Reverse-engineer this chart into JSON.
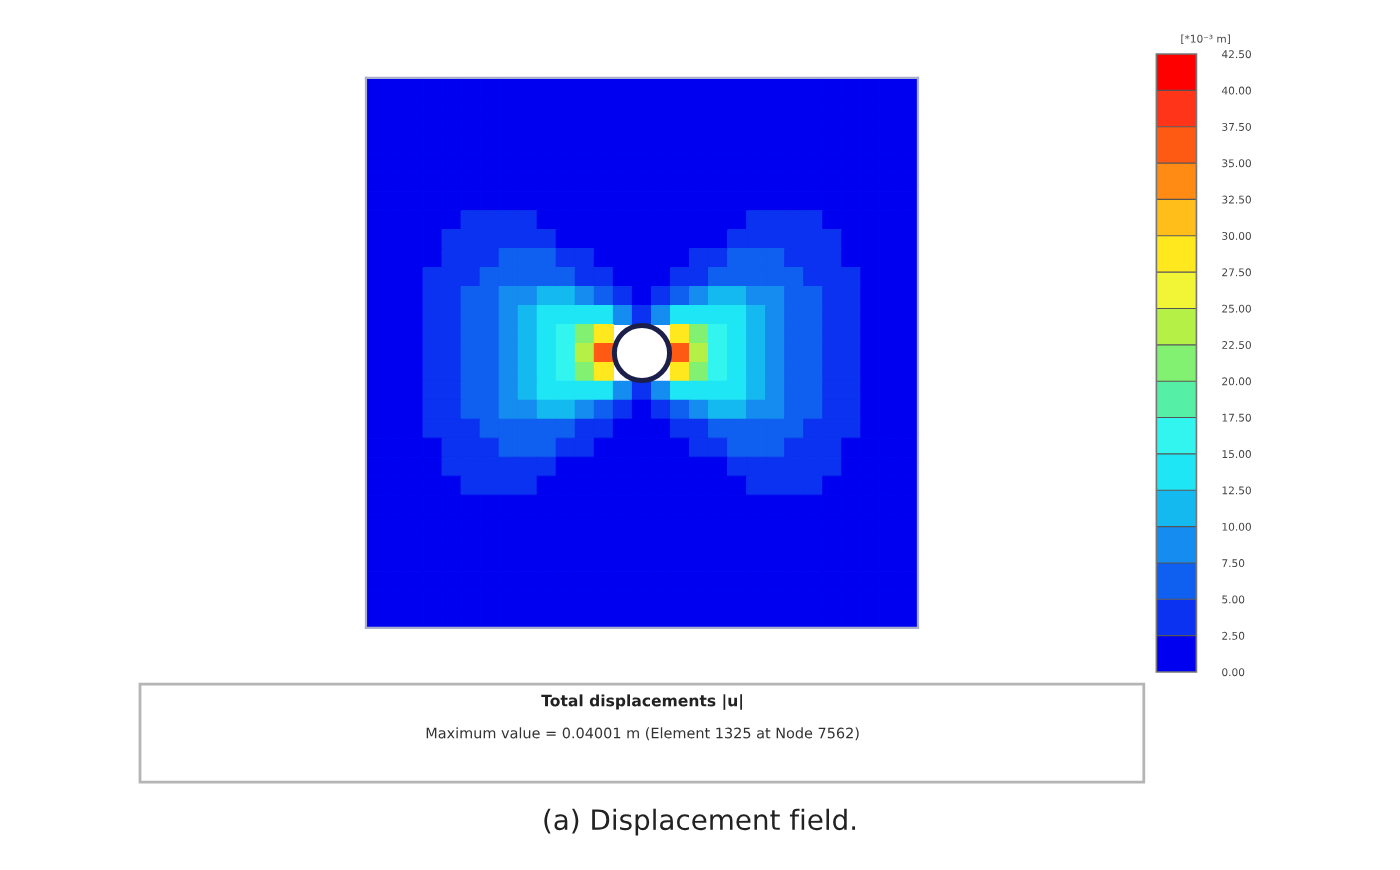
{
  "chart_data": {
    "type": "heatmap",
    "title": "Total displacements |u|",
    "subtitle": "Maximum value = 0.04001 m (Element 1325 at Node 7562)",
    "annotations": [
      "(a) Displacement field."
    ],
    "clabel": "[*10⁻³ m]",
    "categories": [
      null,
      null,
      null,
      null,
      null,
      null,
      null,
      null,
      null,
      null,
      null,
      null,
      null,
      null,
      null,
      null,
      null,
      null,
      null,
      null,
      null,
      null,
      null,
      null,
      null,
      null,
      null,
      null,
      null
    ],
    "y_categories": [
      null,
      null,
      null,
      null,
      null,
      null,
      null,
      null,
      null,
      null,
      null,
      null,
      null,
      null,
      null,
      null,
      null,
      null,
      null,
      null,
      null,
      null,
      null,
      null,
      null,
      null,
      null,
      null,
      null
    ],
    "cells": [
      [
        1,
        1,
        1,
        1,
        1,
        1,
        1,
        1,
        1,
        1,
        1,
        1,
        1,
        1,
        1,
        1,
        1,
        1,
        1,
        1,
        1,
        1,
        1,
        1,
        1,
        1,
        1,
        1,
        1
      ],
      [
        1,
        1,
        1,
        1,
        1,
        1,
        1,
        1,
        1,
        1,
        1,
        1,
        1,
        1,
        1,
        1,
        1,
        1,
        1,
        1,
        1,
        1,
        1,
        1,
        1,
        1,
        1,
        1,
        1
      ],
      [
        1,
        1,
        1,
        1,
        1,
        1,
        1,
        1,
        1,
        1,
        1,
        1,
        1,
        1,
        1,
        1,
        1,
        1,
        1,
        1,
        1,
        1,
        1,
        1,
        1,
        1,
        1,
        1,
        1
      ],
      [
        1,
        1,
        1,
        1,
        1,
        1,
        1,
        1,
        1,
        1,
        1,
        1,
        1,
        1,
        1,
        1,
        1,
        1,
        1,
        1,
        1,
        1,
        1,
        1,
        1,
        1,
        1,
        1,
        1
      ],
      [
        1,
        1,
        1,
        1,
        1,
        1,
        1,
        1,
        1,
        1,
        1,
        1,
        1,
        1,
        1,
        1,
        1,
        1,
        1,
        1,
        1,
        1,
        1,
        1,
        1,
        1,
        1,
        1,
        1
      ],
      [
        1,
        1,
        1,
        1,
        1,
        1,
        1,
        1,
        1,
        1,
        1,
        1,
        1,
        1,
        1,
        1,
        1,
        1,
        1,
        1,
        1,
        1,
        1,
        1,
        1,
        1,
        1,
        1,
        1
      ],
      [
        1,
        1,
        1,
        1,
        1,
        1,
        1,
        1,
        1,
        1,
        1,
        1,
        1,
        1,
        1,
        1,
        1,
        1,
        1,
        1,
        1,
        1,
        1,
        1,
        1,
        1,
        1,
        1,
        1
      ],
      [
        1,
        1,
        1,
        1,
        1,
        4,
        4,
        4,
        4,
        1,
        1,
        1,
        1,
        1,
        1,
        1,
        1,
        1,
        1,
        1,
        4,
        4,
        4,
        4,
        1,
        1,
        1,
        1,
        1
      ],
      [
        1,
        1,
        1,
        1,
        4,
        4,
        4,
        4,
        4,
        4,
        1,
        1,
        1,
        1,
        1,
        1,
        1,
        1,
        1,
        4,
        4,
        4,
        4,
        4,
        4,
        1,
        1,
        1,
        1
      ],
      [
        1,
        1,
        1,
        1,
        4,
        4,
        4,
        6,
        6,
        6,
        4,
        4,
        1,
        1,
        1,
        1,
        1,
        4,
        4,
        6,
        6,
        6,
        4,
        4,
        4,
        1,
        1,
        1,
        1
      ],
      [
        1,
        1,
        1,
        4,
        4,
        4,
        6,
        6,
        6,
        6,
        6,
        4,
        4,
        1,
        1,
        1,
        4,
        4,
        6,
        6,
        6,
        6,
        6,
        4,
        4,
        4,
        1,
        1,
        1
      ],
      [
        1,
        1,
        1,
        4,
        4,
        6,
        6,
        9,
        9,
        11,
        11,
        9,
        6,
        4,
        1,
        4,
        6,
        9,
        11,
        11,
        9,
        9,
        6,
        6,
        4,
        4,
        1,
        1,
        1
      ],
      [
        1,
        1,
        1,
        4,
        4,
        6,
        6,
        9,
        11,
        14,
        14,
        14,
        14,
        9,
        4,
        9,
        14,
        14,
        14,
        14,
        11,
        9,
        6,
        6,
        4,
        4,
        1,
        1,
        1
      ],
      [
        1,
        1,
        1,
        4,
        4,
        6,
        6,
        9,
        11,
        14,
        16,
        21,
        29,
        null,
        null,
        null,
        29,
        21,
        16,
        14,
        11,
        9,
        6,
        6,
        4,
        4,
        1,
        1,
        1
      ],
      [
        1,
        1,
        1,
        4,
        4,
        6,
        6,
        9,
        11,
        14,
        16,
        24,
        36,
        null,
        null,
        null,
        36,
        24,
        16,
        14,
        11,
        9,
        6,
        6,
        4,
        4,
        1,
        1,
        1
      ],
      [
        1,
        1,
        1,
        4,
        4,
        6,
        6,
        9,
        11,
        14,
        16,
        21,
        29,
        null,
        null,
        null,
        29,
        21,
        16,
        14,
        11,
        9,
        6,
        6,
        4,
        4,
        1,
        1,
        1
      ],
      [
        1,
        1,
        1,
        4,
        4,
        6,
        6,
        9,
        11,
        14,
        14,
        14,
        14,
        9,
        4,
        9,
        14,
        14,
        14,
        14,
        11,
        9,
        6,
        6,
        4,
        4,
        1,
        1,
        1
      ],
      [
        1,
        1,
        1,
        4,
        4,
        6,
        6,
        9,
        9,
        11,
        11,
        9,
        6,
        4,
        1,
        4,
        6,
        9,
        11,
        11,
        9,
        9,
        6,
        6,
        4,
        4,
        1,
        1,
        1
      ],
      [
        1,
        1,
        1,
        4,
        4,
        4,
        6,
        6,
        6,
        6,
        6,
        4,
        4,
        1,
        1,
        1,
        4,
        4,
        6,
        6,
        6,
        6,
        6,
        4,
        4,
        4,
        1,
        1,
        1
      ],
      [
        1,
        1,
        1,
        1,
        4,
        4,
        4,
        6,
        6,
        6,
        4,
        4,
        1,
        1,
        1,
        1,
        1,
        4,
        4,
        6,
        6,
        6,
        4,
        4,
        4,
        1,
        1,
        1,
        1
      ],
      [
        1,
        1,
        1,
        1,
        4,
        4,
        4,
        4,
        4,
        4,
        1,
        1,
        1,
        1,
        1,
        1,
        1,
        1,
        1,
        4,
        4,
        4,
        4,
        4,
        4,
        1,
        1,
        1,
        1
      ],
      [
        1,
        1,
        1,
        1,
        1,
        4,
        4,
        4,
        4,
        1,
        1,
        1,
        1,
        1,
        1,
        1,
        1,
        1,
        1,
        1,
        4,
        4,
        4,
        4,
        1,
        1,
        1,
        1,
        1
      ],
      [
        1,
        1,
        1,
        1,
        1,
        1,
        1,
        1,
        1,
        1,
        1,
        1,
        1,
        1,
        1,
        1,
        1,
        1,
        1,
        1,
        1,
        1,
        1,
        1,
        1,
        1,
        1,
        1,
        1
      ],
      [
        1,
        1,
        1,
        1,
        1,
        1,
        1,
        1,
        1,
        1,
        1,
        1,
        1,
        1,
        1,
        1,
        1,
        1,
        1,
        1,
        1,
        1,
        1,
        1,
        1,
        1,
        1,
        1,
        1
      ],
      [
        1,
        1,
        1,
        1,
        1,
        1,
        1,
        1,
        1,
        1,
        1,
        1,
        1,
        1,
        1,
        1,
        1,
        1,
        1,
        1,
        1,
        1,
        1,
        1,
        1,
        1,
        1,
        1,
        1
      ],
      [
        1,
        1,
        1,
        1,
        1,
        1,
        1,
        1,
        1,
        1,
        1,
        1,
        1,
        1,
        1,
        1,
        1,
        1,
        1,
        1,
        1,
        1,
        1,
        1,
        1,
        1,
        1,
        1,
        1
      ],
      [
        1,
        1,
        1,
        1,
        1,
        1,
        1,
        1,
        1,
        1,
        1,
        1,
        1,
        1,
        1,
        1,
        1,
        1,
        1,
        1,
        1,
        1,
        1,
        1,
        1,
        1,
        1,
        1,
        1
      ],
      [
        1,
        1,
        1,
        1,
        1,
        1,
        1,
        1,
        1,
        1,
        1,
        1,
        1,
        1,
        1,
        1,
        1,
        1,
        1,
        1,
        1,
        1,
        1,
        1,
        1,
        1,
        1,
        1,
        1
      ],
      [
        1,
        1,
        1,
        1,
        1,
        1,
        1,
        1,
        1,
        1,
        1,
        1,
        1,
        1,
        1,
        1,
        1,
        1,
        1,
        1,
        1,
        1,
        1,
        1,
        1,
        1,
        1,
        1,
        1
      ]
    ],
    "clim": [
      0,
      42.5
    ],
    "cticks": [
      {
        "value": 0,
        "label": "0.00"
      },
      {
        "value": 2.5,
        "label": "2.50"
      },
      {
        "value": 5,
        "label": "5.00"
      },
      {
        "value": 7.5,
        "label": "7.50"
      },
      {
        "value": 10,
        "label": "10.00"
      },
      {
        "value": 12.5,
        "label": "12.50"
      },
      {
        "value": 15,
        "label": "15.00"
      },
      {
        "value": 17.5,
        "label": "17.50"
      },
      {
        "value": 20,
        "label": "20.00"
      },
      {
        "value": 22.5,
        "label": "22.50"
      },
      {
        "value": 25,
        "label": "25.00"
      },
      {
        "value": 27.5,
        "label": "27.50"
      },
      {
        "value": 30,
        "label": "30.00"
      },
      {
        "value": 32.5,
        "label": "32.50"
      },
      {
        "value": 35,
        "label": "35.00"
      },
      {
        "value": 37.5,
        "label": "37.50"
      },
      {
        "value": 40,
        "label": "40.00"
      },
      {
        "value": 42.5,
        "label": "42.50"
      }
    ]
  }
}
